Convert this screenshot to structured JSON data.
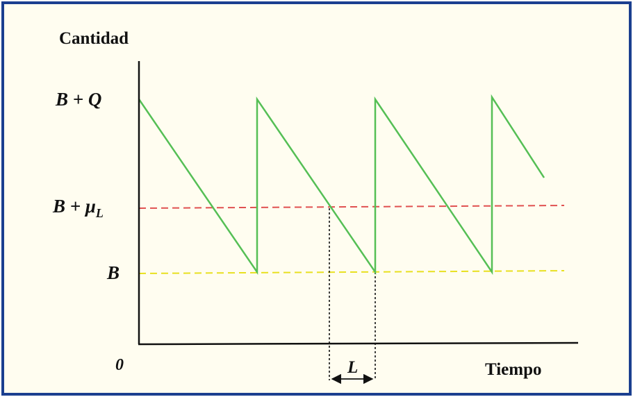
{
  "diagram": {
    "y_axis_label": "Cantidad",
    "x_axis_label": "Tiempo",
    "origin_label": "0",
    "level_labels": {
      "top": {
        "main": "B + Q"
      },
      "reorder": {
        "main": "B + μ",
        "sub": "L"
      },
      "safety": {
        "main": "B"
      }
    },
    "lead_time_label": "L",
    "colors": {
      "frame_border": "#1b3f8f",
      "background": "#fffdf0",
      "inventory_line": "#55bf55",
      "reorder_line": "#e05050",
      "safety_line": "#e8e020",
      "axis": "#111111"
    }
  }
}
